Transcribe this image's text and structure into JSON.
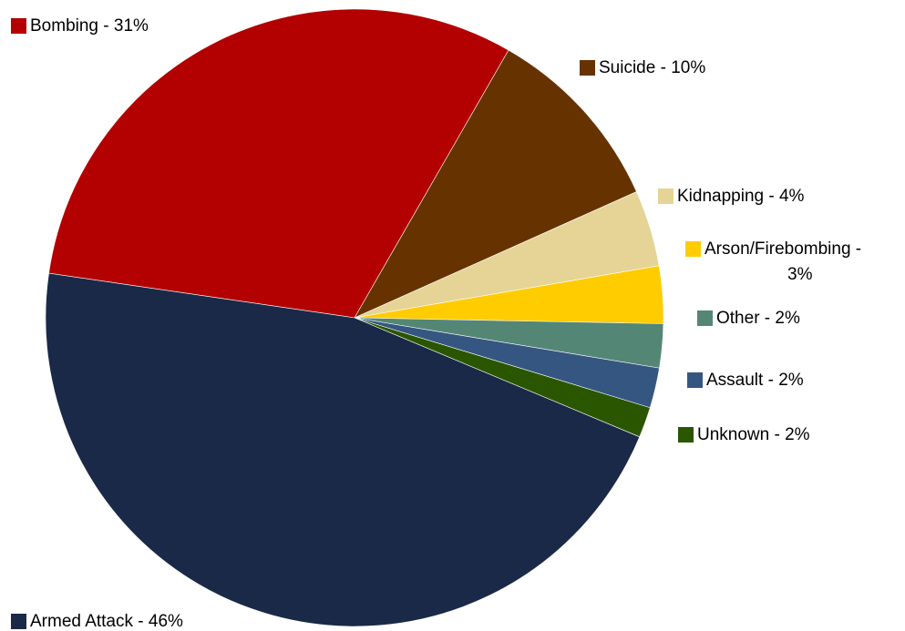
{
  "chart_data": {
    "type": "pie",
    "start_angle_deg": 171.7,
    "direction": "clockwise",
    "legend": "labels beside slices",
    "slices": [
      {
        "label": "Bombing - 31%",
        "value": 31,
        "color": "#b30000"
      },
      {
        "label": "Suicide - 10%",
        "value": 10,
        "color": "#663300"
      },
      {
        "label": "Kidnapping - 4%",
        "value": 4,
        "color": "#e5d496"
      },
      {
        "label": "Arson/Firebombing -",
        "label2": "3%",
        "value": 3,
        "color": "#ffcc00"
      },
      {
        "label": "Other - 2%",
        "value": 2.3,
        "color": "#548676"
      },
      {
        "label": "Assault - 2%",
        "value": 2.1,
        "color": "#355680"
      },
      {
        "label": "Unknown - 2%",
        "value": 1.6,
        "color": "#2b5600"
      },
      {
        "label": "Armed Attack - 46%",
        "value": 46,
        "color": "#1a2947"
      }
    ]
  }
}
